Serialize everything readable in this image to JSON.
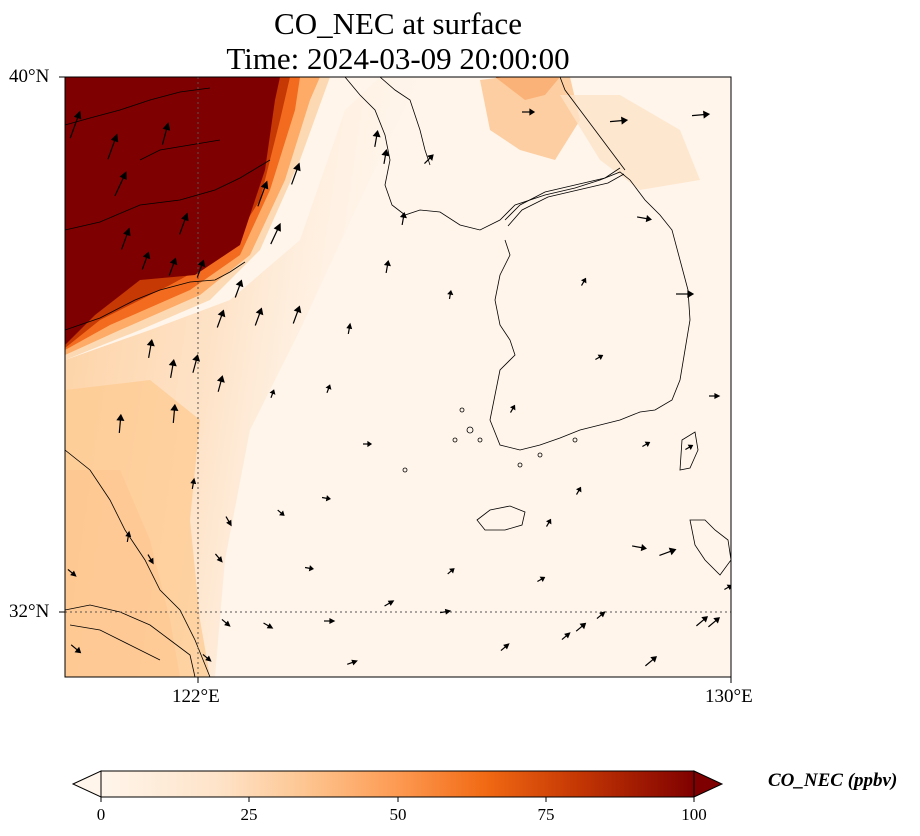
{
  "title": {
    "line1": "CO_NEC at surface",
    "line2": "Time: 2024-03-09 20:00:00"
  },
  "axes": {
    "lat_ticks": [
      "40°N",
      "32°N"
    ],
    "lon_ticks": [
      "122°E",
      "130°E"
    ],
    "gridlines": true
  },
  "colorbar": {
    "label": "CO_NEC (ppbv)",
    "ticks": [
      "0",
      "25",
      "50",
      "75",
      "100"
    ],
    "range": [
      0,
      100
    ],
    "extend": "both",
    "colors": [
      "#fff5eb",
      "#fdd9b3",
      "#fdab67",
      "#f26b1f",
      "#c63804",
      "#7f0000"
    ]
  },
  "map": {
    "extent": {
      "lon": [
        120,
        130
      ],
      "lat": [
        31,
        40
      ]
    },
    "projection": "lambert-like",
    "coastline_color": "#000000",
    "background_color": "#fff5eb"
  }
}
